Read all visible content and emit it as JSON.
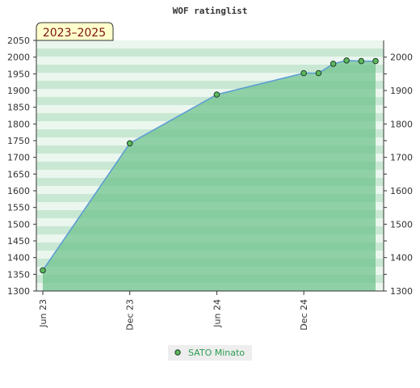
{
  "chart_data": {
    "type": "area",
    "title": "WOF ratinglist",
    "badge": "2023–2025",
    "x_tick_labels": [
      "Jun 23",
      "Dec 23",
      "Jun 24",
      "Dec 24"
    ],
    "y_ticks_left": [
      1300,
      1350,
      1400,
      1450,
      1500,
      1550,
      1600,
      1650,
      1700,
      1750,
      1800,
      1850,
      1900,
      1950,
      2000,
      2050
    ],
    "y_ticks_right": [
      1300,
      1400,
      1500,
      1600,
      1700,
      1800,
      1900,
      2000
    ],
    "ylim": [
      1300,
      2050
    ],
    "series": [
      {
        "name": "SATO Minato",
        "points": [
          {
            "x": "2023-06-01",
            "y": 1362
          },
          {
            "x": "2023-12-01",
            "y": 1742
          },
          {
            "x": "2024-06-01",
            "y": 1888
          },
          {
            "x": "2024-12-01",
            "y": 1952
          },
          {
            "x": "2025-01-01",
            "y": 1952
          },
          {
            "x": "2025-02-01",
            "y": 1980
          },
          {
            "x": "2025-03-01",
            "y": 1990
          },
          {
            "x": "2025-04-01",
            "y": 1988
          },
          {
            "x": "2025-05-01",
            "y": 1988
          }
        ]
      }
    ],
    "colors": {
      "line": "#5b9bd5",
      "area": "#6cc08a",
      "marker": "#5cb85c",
      "band_light": "#eaf6ee",
      "band_dark": "#c9e8d3",
      "legend_bg": "#eeeeee",
      "badge_bg": "#ffffcc"
    },
    "grid": true,
    "legend_position": "bottom"
  }
}
